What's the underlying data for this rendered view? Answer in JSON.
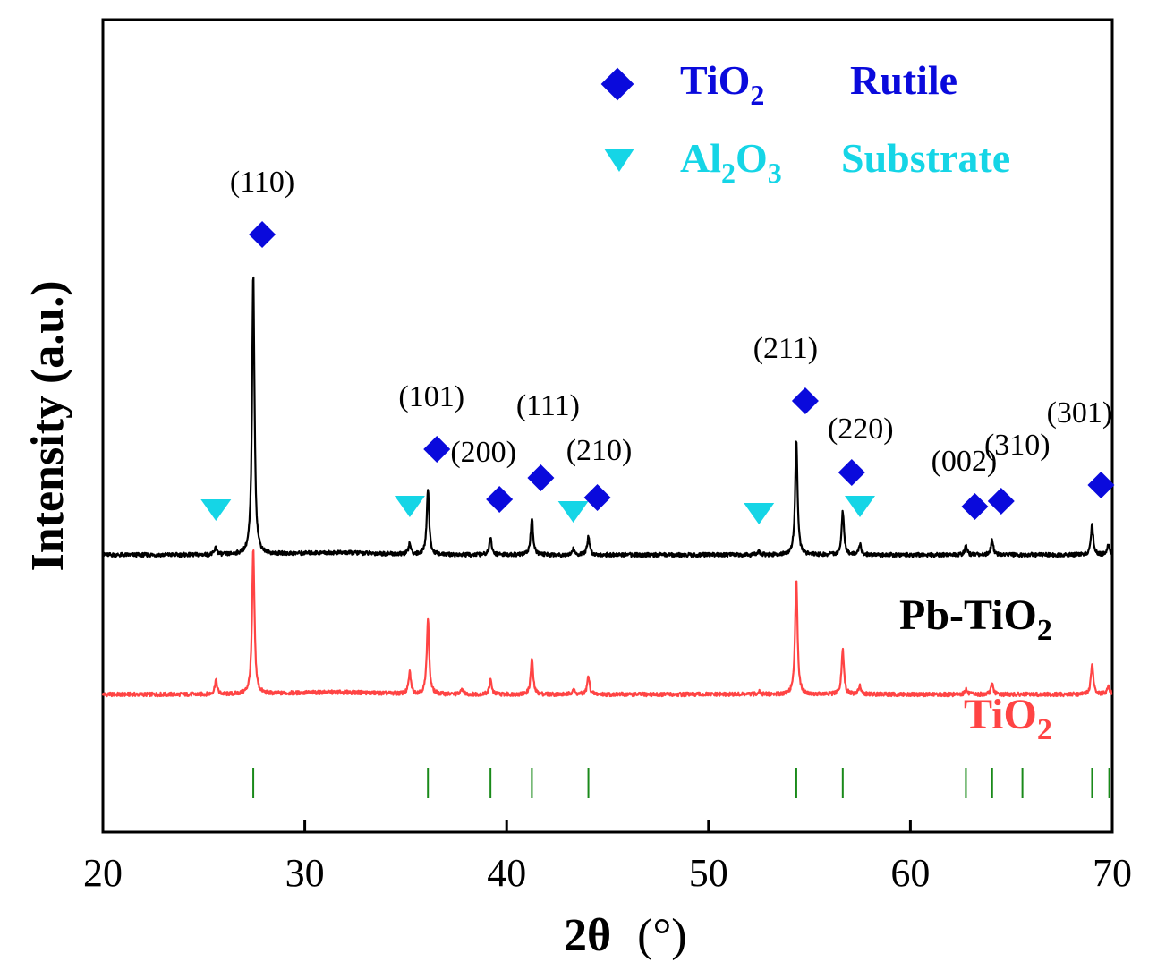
{
  "chart_data": {
    "type": "line",
    "title": "",
    "xlabel_main": "2θ",
    "xlabel_unit": "(°)",
    "ylabel": "Intensity (a.u.)",
    "xlim": [
      20,
      70
    ],
    "x_ticks": [
      20,
      30,
      40,
      50,
      60,
      70
    ],
    "y_ticks_shown": false,
    "grid": false,
    "colors": {
      "pb": "#000000",
      "tio2": "#ff4444",
      "rutile_marker": "#0a0adc",
      "substrate_marker": "#15d5e6",
      "reference_ticks": "#1a8a1a"
    },
    "series": [
      {
        "name": "Pb-TiO2",
        "label_parts": [
          "Pb-TiO",
          "2"
        ],
        "color": "#000000",
        "baseline": 1.55,
        "peaks": [
          {
            "x": 25.6,
            "h": 0.04
          },
          {
            "x": 27.45,
            "h": 1.57
          },
          {
            "x": 35.2,
            "h": 0.06
          },
          {
            "x": 36.1,
            "h": 0.37
          },
          {
            "x": 39.2,
            "h": 0.09
          },
          {
            "x": 41.25,
            "h": 0.21
          },
          {
            "x": 43.3,
            "h": 0.03
          },
          {
            "x": 44.05,
            "h": 0.1
          },
          {
            "x": 52.5,
            "h": 0.02
          },
          {
            "x": 54.35,
            "h": 0.64
          },
          {
            "x": 56.65,
            "h": 0.24
          },
          {
            "x": 57.5,
            "h": 0.06
          },
          {
            "x": 62.75,
            "h": 0.05
          },
          {
            "x": 64.05,
            "h": 0.08
          },
          {
            "x": 69.0,
            "h": 0.17
          },
          {
            "x": 69.8,
            "h": 0.06
          }
        ]
      },
      {
        "name": "TiO2",
        "label_parts": [
          "TiO",
          "2"
        ],
        "color": "#ff4444",
        "baseline": 0.77,
        "peaks": [
          {
            "x": 25.6,
            "h": 0.08
          },
          {
            "x": 27.45,
            "h": 0.81
          },
          {
            "x": 35.2,
            "h": 0.12
          },
          {
            "x": 36.1,
            "h": 0.42
          },
          {
            "x": 37.8,
            "h": 0.03
          },
          {
            "x": 39.2,
            "h": 0.08
          },
          {
            "x": 41.25,
            "h": 0.2
          },
          {
            "x": 43.3,
            "h": 0.03
          },
          {
            "x": 44.05,
            "h": 0.1
          },
          {
            "x": 52.5,
            "h": 0.02
          },
          {
            "x": 54.35,
            "h": 0.65
          },
          {
            "x": 56.65,
            "h": 0.25
          },
          {
            "x": 57.5,
            "h": 0.05
          },
          {
            "x": 62.75,
            "h": 0.03
          },
          {
            "x": 64.05,
            "h": 0.06
          },
          {
            "x": 69.0,
            "h": 0.17
          },
          {
            "x": 69.8,
            "h": 0.05
          }
        ]
      }
    ],
    "reference_ticks": [
      27.45,
      36.1,
      39.2,
      41.25,
      44.05,
      54.35,
      56.65,
      62.75,
      64.05,
      65.55,
      69.0,
      69.85
    ],
    "rutile_peaks": [
      {
        "hkl": "(110)",
        "x": 27.45
      },
      {
        "hkl": "(101)",
        "x": 36.1
      },
      {
        "hkl": "(200)",
        "x": 39.2
      },
      {
        "hkl": "(111)",
        "x": 41.25
      },
      {
        "hkl": "(210)",
        "x": 44.05
      },
      {
        "hkl": "(211)",
        "x": 54.35
      },
      {
        "hkl": "(220)",
        "x": 56.65
      },
      {
        "hkl": "(002)",
        "x": 62.75
      },
      {
        "hkl": "(310)",
        "x": 64.05
      },
      {
        "hkl": "(301)",
        "x": 69.0
      }
    ],
    "substrate_peaks": [
      25.6,
      35.2,
      43.3,
      52.5,
      57.5
    ],
    "legend": [
      {
        "symbol": "diamond",
        "formula_parts": [
          "TiO",
          "2",
          ""
        ],
        "label": "Rutile",
        "color": "#0a0adc"
      },
      {
        "symbol": "triangle-down",
        "formula_parts": [
          "Al",
          "2",
          "O",
          "3"
        ],
        "label": "Substrate",
        "color": "#15d5e6"
      }
    ],
    "legend_position": "top-right"
  }
}
